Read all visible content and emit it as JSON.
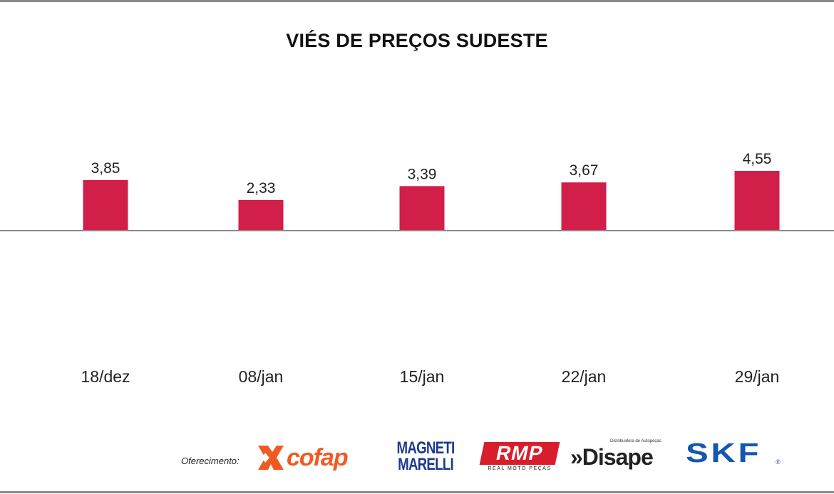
{
  "chart_data": {
    "type": "bar",
    "title": "VIÉS DE PREÇOS SUDESTE",
    "categories": [
      "18/dez",
      "08/jan",
      "15/jan",
      "22/jan",
      "29/jan"
    ],
    "values": [
      3.85,
      2.33,
      3.39,
      3.67,
      4.55
    ],
    "value_labels": [
      "3,85",
      "2,33",
      "3,39",
      "3,67",
      "4,55"
    ],
    "bar_color": "#d21f4a",
    "baseline": 0,
    "xlabel": "",
    "ylabel": "",
    "grid": false,
    "legend": "none"
  },
  "footer": {
    "sponsor_label": "Oferecimento:",
    "sponsors": {
      "cofap": {
        "name": "cofap",
        "icon": "cofap-x-icon",
        "color": "#f05a22"
      },
      "magneti_marelli": {
        "line1": "MAGNETI",
        "line2": "MARELLI",
        "color": "#1d3a8f"
      },
      "rmp": {
        "mark": "RMP",
        "tagline": "REAL MOTO PEÇAS",
        "color": "#d81e2c"
      },
      "disape": {
        "tagline": "Distribuidora de Autopeças",
        "name": "»Disape",
        "color": "#222222"
      },
      "skf": {
        "name": "SKF",
        "reg": "®",
        "color": "#1457b0"
      }
    }
  }
}
